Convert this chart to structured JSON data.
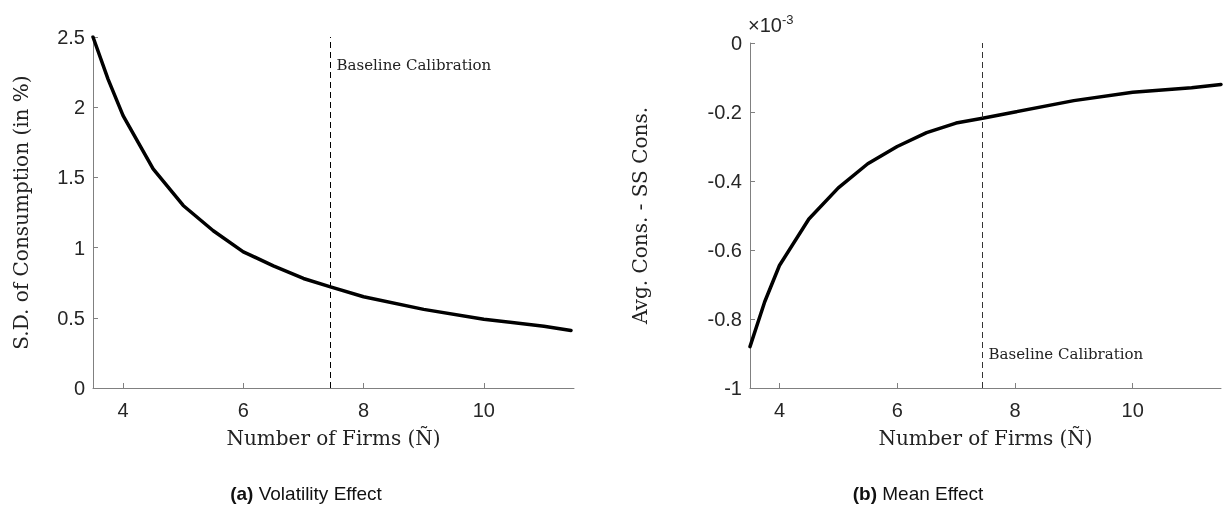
{
  "chart_data": [
    {
      "type": "line",
      "title": "(a) Volatility Effect",
      "xlabel": "Number of Firms (Ñ)",
      "ylabel": "S.D. of Consumption (in %)",
      "x": [
        3.5,
        3.75,
        4,
        4.5,
        5,
        5.5,
        6,
        6.5,
        7,
        7.45,
        8,
        9,
        10,
        11,
        11.45
      ],
      "series": [
        {
          "color": "#000000",
          "values": [
            2.5,
            2.2,
            1.94,
            1.56,
            1.3,
            1.12,
            0.97,
            0.87,
            0.78,
            0.72,
            0.65,
            0.56,
            0.49,
            0.44,
            0.41
          ]
        }
      ],
      "xlim": [
        3.5,
        11.5
      ],
      "xticks": [
        4,
        6,
        8,
        10
      ],
      "ylim": [
        0,
        2.5
      ],
      "yticks": [
        0,
        0.5,
        1,
        1.5,
        2,
        2.5
      ],
      "ref_lines": [
        {
          "axis": "x",
          "value": 7.45,
          "color": "#000000",
          "line_style": "dashed"
        }
      ],
      "annotations": [
        {
          "text": "Baseline Calibration",
          "x": 7.45,
          "y": 2.3
        }
      ],
      "grid": false,
      "marker": "none",
      "line_style": "solid"
    },
    {
      "type": "line",
      "title": "(b) Mean Effect",
      "xlabel": "Number of Firms (Ñ)",
      "ylabel": "Avg. Cons. - SS Cons.",
      "x": [
        3.5,
        3.75,
        4,
        4.5,
        5,
        5.5,
        6,
        6.5,
        7,
        7.45,
        8,
        9,
        10,
        11,
        11.5
      ],
      "series": [
        {
          "color": "#000000",
          "values": [
            -0.88,
            -0.75,
            -0.645,
            -0.51,
            -0.42,
            -0.35,
            -0.3,
            -0.26,
            -0.232,
            -0.218,
            -0.2,
            -0.167,
            -0.143,
            -0.13,
            -0.12
          ]
        }
      ],
      "xlim": [
        3.5,
        11.5
      ],
      "xticks": [
        4,
        6,
        8,
        10
      ],
      "ylim": [
        -1,
        0
      ],
      "yticks": [
        -1,
        -0.8,
        -0.6,
        -0.4,
        -0.2,
        0
      ],
      "ref_lines": [
        {
          "axis": "x",
          "value": 7.45,
          "color": "#333333",
          "line_style": "dashed"
        }
      ],
      "annotations": [
        "×10$^{-3}$",
        {
          "text": "Baseline Calibration",
          "x": 7.45,
          "y": -0.9
        }
      ],
      "grid": false,
      "marker": "none",
      "line_style": "solid"
    }
  ]
}
